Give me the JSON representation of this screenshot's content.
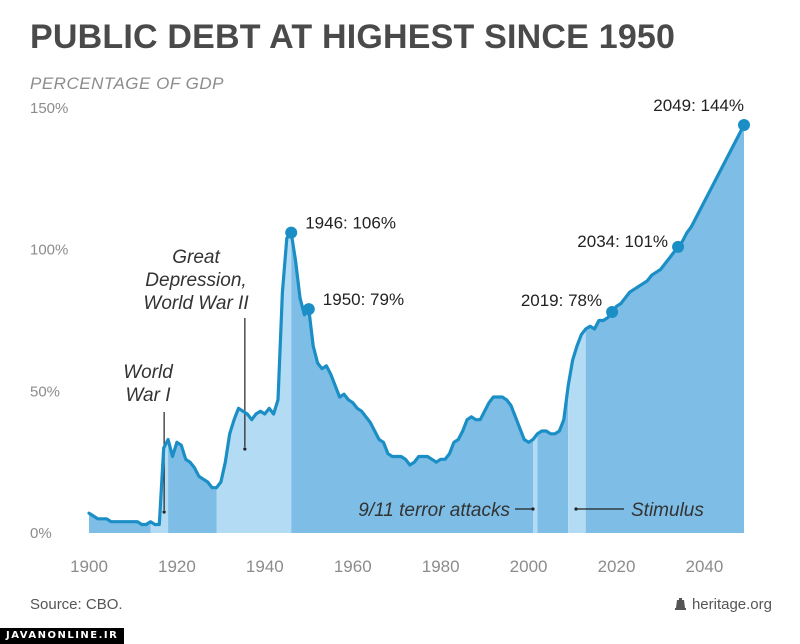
{
  "header": {
    "title": "PUBLIC DEBT AT HIGHEST SINCE 1950",
    "subtitle": "PERCENTAGE OF GDP"
  },
  "footer": {
    "source": "Source: CBO.",
    "credit": "heritage.org",
    "watermark": "JAVANONLINE.IR"
  },
  "colors": {
    "line": "#1b8fc5",
    "fill_dark": "#7ebde6",
    "fill_light": "#b3dbf3",
    "axis_text": "#8c8c8c",
    "title": "#4a4a4a"
  },
  "chart_data": {
    "type": "area",
    "title": "PUBLIC DEBT AT HIGHEST SINCE 1950",
    "subtitle": "PERCENTAGE OF GDP",
    "xlim": [
      1900,
      2049
    ],
    "ylim": [
      0,
      150
    ],
    "x_ticks": [
      1900,
      1920,
      1940,
      1960,
      1980,
      2000,
      2020,
      2040
    ],
    "y_ticks": [
      0,
      50,
      100,
      150
    ],
    "y_tick_labels": [
      "0%",
      "50%",
      "100%",
      "150%"
    ],
    "x_tick_labels": [
      "1900",
      "1920",
      "1940",
      "1960",
      "1980",
      "2000",
      "2020",
      "2040"
    ],
    "series": [
      {
        "x": [
          1900,
          1901,
          1902,
          1903,
          1904,
          1905,
          1906,
          1907,
          1908,
          1909,
          1910,
          1911,
          1912,
          1913,
          1914,
          1915,
          1916,
          1917,
          1918,
          1919,
          1920,
          1921,
          1922,
          1923,
          1924,
          1925,
          1926,
          1927,
          1928,
          1929,
          1930,
          1931,
          1932,
          1933,
          1934,
          1935,
          1936,
          1937,
          1938,
          1939,
          1940,
          1941,
          1942,
          1943,
          1944,
          1945,
          1946,
          1947,
          1948,
          1949,
          1950,
          1951,
          1952,
          1953,
          1954,
          1955,
          1956,
          1957,
          1958,
          1959,
          1960,
          1961,
          1962,
          1963,
          1964,
          1965,
          1966,
          1967,
          1968,
          1969,
          1970,
          1971,
          1972,
          1973,
          1974,
          1975,
          1976,
          1977,
          1978,
          1979,
          1980,
          1981,
          1982,
          1983,
          1984,
          1985,
          1986,
          1987,
          1988,
          1989,
          1990,
          1991,
          1992,
          1993,
          1994,
          1995,
          1996,
          1997,
          1998,
          1999,
          2000,
          2001,
          2002,
          2003,
          2004,
          2005,
          2006,
          2007,
          2008,
          2009,
          2010,
          2011,
          2012,
          2013,
          2014,
          2015,
          2016,
          2017,
          2018,
          2019,
          2020,
          2021,
          2022,
          2023,
          2024,
          2025,
          2026,
          2027,
          2028,
          2029,
          2030,
          2031,
          2032,
          2033,
          2034,
          2035,
          2036,
          2037,
          2038,
          2039,
          2040,
          2041,
          2042,
          2043,
          2044,
          2045,
          2046,
          2047,
          2048,
          2049
        ],
        "values": [
          7,
          6,
          5,
          5,
          5,
          4,
          4,
          4,
          4,
          4,
          4,
          4,
          3,
          3,
          4,
          3,
          3,
          30,
          33,
          27,
          32,
          31,
          26,
          25,
          23,
          20,
          19,
          18,
          16,
          16,
          18,
          25,
          35,
          40,
          44,
          43,
          42,
          40,
          42,
          43,
          42,
          44,
          42,
          47,
          85,
          104,
          106,
          96,
          83,
          77,
          79,
          66,
          60,
          58,
          59,
          56,
          52,
          48,
          49,
          47,
          46,
          44,
          43,
          41,
          39,
          36,
          33,
          32,
          28,
          27,
          27,
          27,
          26,
          24,
          25,
          27,
          27,
          27,
          26,
          25,
          26,
          26,
          28,
          32,
          33,
          36,
          40,
          41,
          40,
          40,
          43,
          46,
          48,
          48,
          48,
          47,
          45,
          41,
          37,
          33,
          32,
          33,
          35,
          36,
          36,
          35,
          35,
          36,
          40,
          52,
          61,
          66,
          70,
          72,
          73,
          72,
          75,
          75,
          76,
          78,
          80,
          81,
          83,
          85,
          86,
          87,
          88,
          89,
          91,
          92,
          93,
          95,
          97,
          99,
          101,
          103,
          106,
          108,
          111,
          114,
          117,
          120,
          123,
          126,
          129,
          132,
          135,
          138,
          141,
          144
        ]
      }
    ],
    "annotations": [
      {
        "x": 1946,
        "y": 106,
        "label": "1946: 106%"
      },
      {
        "x": 1950,
        "y": 79,
        "label": "1950: 79%"
      },
      {
        "x": 2019,
        "y": 78,
        "label": "2019: 78%"
      },
      {
        "x": 2034,
        "y": 101,
        "label": "2034: 101%"
      },
      {
        "x": 2049,
        "y": 144,
        "label": "2049: 144%"
      }
    ],
    "events": [
      {
        "label_lines": [
          "World",
          "War I"
        ],
        "x": 1918
      },
      {
        "label_lines": [
          "Great",
          "Depression,",
          "World War II"
        ],
        "x": 1935
      },
      {
        "label": "9/11 terror attacks",
        "x": 2001
      },
      {
        "label": "Stimulus",
        "x": 2010
      }
    ],
    "shaded_periods": [
      {
        "start": 1900,
        "end": 1914,
        "shade": "dark"
      },
      {
        "start": 1914,
        "end": 1918,
        "shade": "light"
      },
      {
        "start": 1918,
        "end": 1929,
        "shade": "dark"
      },
      {
        "start": 1929,
        "end": 1946,
        "shade": "light"
      },
      {
        "start": 1946,
        "end": 2001,
        "shade": "dark"
      },
      {
        "start": 2001,
        "end": 2002,
        "shade": "light"
      },
      {
        "start": 2002,
        "end": 2009,
        "shade": "dark"
      },
      {
        "start": 2009,
        "end": 2013,
        "shade": "light"
      },
      {
        "start": 2013,
        "end": 2049,
        "shade": "dark"
      }
    ]
  }
}
